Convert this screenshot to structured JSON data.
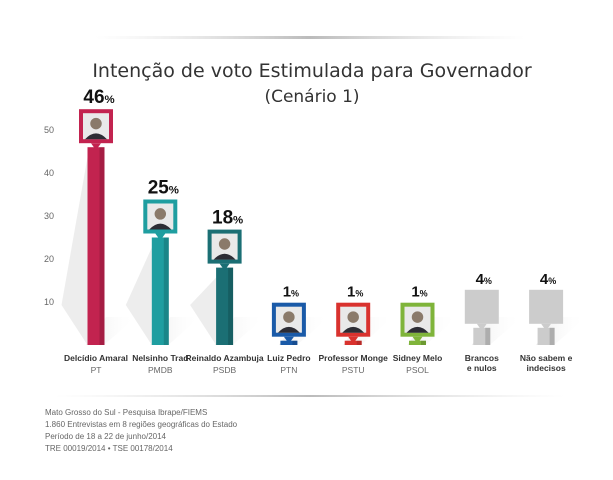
{
  "chart_data": {
    "type": "bar",
    "title_line1": "Intenção de voto Estimulada para Governador",
    "title_line2": "(Cenário 1)",
    "xlabel": "",
    "ylabel": "",
    "ylim": [
      0,
      55
    ],
    "yticks": [
      10,
      20,
      30,
      40,
      50
    ],
    "grid": false,
    "legend": "none",
    "value_suffix": "%",
    "candidates": [
      {
        "name": "Delcídio Amaral",
        "party": "PT",
        "value": 46,
        "label": "46",
        "color": "#c2234f",
        "frame": "#c2234f",
        "photo": true
      },
      {
        "name": "Nelsinho Trad",
        "party": "PMDB",
        "value": 25,
        "label": "25",
        "color": "#1f9ea0",
        "frame": "#1f9ea0",
        "photo": true
      },
      {
        "name": "Reinaldo Azambuja",
        "party": "PSDB",
        "value": 18,
        "label": "18",
        "color": "#1b6f74",
        "frame": "#1b6f74",
        "photo": true
      },
      {
        "name": "Luiz Pedro",
        "party": "PTN",
        "value": 1,
        "label": "1",
        "color": "#1a5aa8",
        "frame": "#1a5aa8",
        "photo": true
      },
      {
        "name": "Professor Monge",
        "party": "PSTU",
        "value": 1,
        "label": "1",
        "color": "#d9322e",
        "frame": "#d9322e",
        "photo": true
      },
      {
        "name": "Sidney Melo",
        "party": "PSOL",
        "value": 1,
        "label": "1",
        "color": "#7fb43a",
        "frame": "#7fb43a",
        "photo": true
      },
      {
        "name": "Brancos\ne nulos",
        "party": "",
        "value": 4,
        "label": "4",
        "color": "#cccccc",
        "frame": "#cccccc",
        "photo": false
      },
      {
        "name": "Não sabem e\nindecisos",
        "party": "",
        "value": 4,
        "label": "4",
        "color": "#cccccc",
        "frame": "#cccccc",
        "photo": false
      }
    ]
  },
  "footer": [
    "Mato Grosso do Sul - Pesquisa Ibrape/FIEMS",
    "1.860 Entrevistas em 8 regiões geográficas do Estado",
    "Período de 18 a 22 de junho/2014",
    "TRE 00019/2014  • TSE 00178/2014"
  ]
}
